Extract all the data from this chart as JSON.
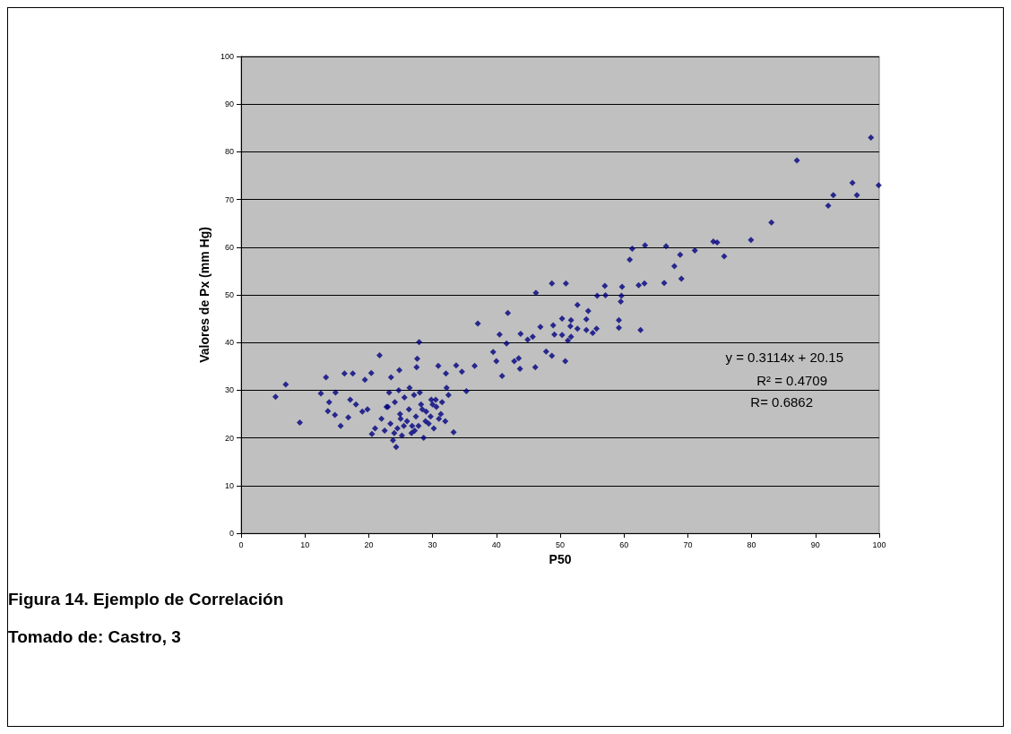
{
  "chart_data": {
    "type": "scatter",
    "xlabel": "P50",
    "ylabel": "Valores de Px (mm Hg)",
    "xlim": [
      0,
      100
    ],
    "xticks": [
      0,
      10,
      20,
      30,
      40,
      50,
      60,
      70,
      80,
      90,
      100
    ],
    "ylim": [
      0,
      100
    ],
    "yticks": [
      0,
      10,
      20,
      30,
      40,
      50,
      60,
      70,
      80,
      90,
      100
    ],
    "grid": "y",
    "marker": "diamond",
    "series": [
      {
        "color": "#000080",
        "x": [
          5.4,
          7.0,
          9.2,
          12.5,
          13.3,
          13.8,
          13.6,
          14.8,
          14.7,
          15.6,
          16.2,
          17.5,
          16.8,
          17.1,
          19.0,
          19.4,
          20.4,
          21.7,
          20.5,
          23.5,
          24.8,
          24.3,
          27.6,
          27.5,
          27.9,
          30.9,
          32.1,
          33.7,
          34.6,
          36.6,
          37.1,
          33.3,
          35.3,
          22.0,
          22.5,
          23.0,
          23.4,
          23.8,
          24.1,
          24.5,
          24.9,
          25.2,
          25.6,
          26.0,
          26.3,
          26.7,
          27.1,
          27.4,
          27.8,
          28.2,
          28.6,
          29.0,
          29.4,
          29.8,
          30.2,
          30.6,
          31.0,
          31.5,
          32.0,
          32.5,
          23.2,
          24.0,
          24.7,
          25.5,
          26.4,
          27.2,
          28.0,
          28.9,
          29.7,
          30.5,
          31.3,
          32.2,
          22.8,
          25.0,
          26.8,
          28.4,
          30.0,
          18.0,
          19.8,
          21.0,
          41.8,
          46.2,
          48.7,
          50.9,
          52.7,
          54.4,
          50.3,
          51.7,
          54.1,
          48.9,
          51.6,
          52.7,
          46.9,
          54.1,
          55.7,
          55.1,
          49.1,
          50.3,
          51.7,
          51.2,
          43.8,
          45.7,
          44.9,
          40.5,
          41.6,
          47.8,
          48.7,
          50.8,
          46.1,
          43.5,
          42.8,
          43.7,
          39.5,
          40.0,
          40.9,
          55.8,
          57.1,
          57.0,
          59.7,
          59.6,
          59.5,
          59.2,
          59.2,
          62.6,
          62.3,
          63.2,
          66.3,
          60.9,
          61.3,
          63.3,
          66.6,
          68.8,
          67.9,
          69.0,
          71.1,
          74.0,
          74.6,
          75.7,
          79.9,
          83.1,
          87.1,
          92.0,
          92.8,
          95.8,
          96.5,
          99.9,
          98.7
        ],
        "values": [
          28.6,
          31.2,
          23.2,
          29.3,
          32.7,
          27.5,
          25.6,
          29.5,
          24.8,
          22.5,
          33.5,
          33.5,
          24.3,
          28.0,
          25.5,
          32.2,
          33.6,
          37.3,
          20.8,
          32.7,
          34.2,
          18.1,
          36.6,
          34.8,
          40.1,
          35.1,
          33.5,
          35.2,
          33.9,
          35.1,
          44.0,
          21.2,
          29.8,
          24.0,
          21.5,
          26.5,
          23.0,
          19.5,
          27.5,
          22.0,
          25.0,
          20.5,
          28.5,
          23.5,
          26.0,
          21.0,
          29.0,
          24.5,
          22.5,
          27.0,
          20.0,
          25.5,
          23.0,
          28.0,
          22.0,
          26.5,
          24.0,
          27.5,
          23.5,
          29.0,
          29.5,
          21.0,
          30.0,
          22.5,
          30.5,
          21.5,
          29.5,
          23.5,
          24.5,
          28.0,
          25.0,
          30.5,
          26.5,
          24.0,
          22.5,
          26.0,
          27.0,
          27.0,
          26.0,
          22.0,
          46.2,
          50.4,
          52.4,
          52.4,
          47.9,
          46.6,
          45.0,
          44.7,
          44.9,
          43.6,
          43.4,
          42.9,
          43.3,
          42.6,
          42.9,
          42.0,
          41.7,
          41.6,
          41.2,
          40.4,
          41.8,
          41.2,
          40.6,
          41.7,
          39.8,
          38.1,
          37.2,
          36.1,
          34.8,
          36.7,
          36.1,
          34.5,
          38.0,
          36.1,
          33.0,
          49.8,
          49.9,
          51.9,
          51.7,
          49.8,
          48.6,
          44.7,
          43.1,
          42.6,
          52.0,
          52.4,
          52.5,
          57.4,
          59.7,
          60.4,
          60.2,
          58.4,
          56.0,
          53.4,
          59.3,
          61.2,
          61.0,
          58.1,
          61.5,
          65.2,
          78.2,
          68.7,
          70.9,
          73.5,
          70.9,
          73.0,
          83.0
        ]
      }
    ],
    "annotations": [
      "y = 0.3114x + 20.15",
      "R² = 0.4709",
      "R= 0.6862",
      "Figura 14. Ejemplo de Correlación",
      "Tomado de: Castro, 3"
    ]
  }
}
